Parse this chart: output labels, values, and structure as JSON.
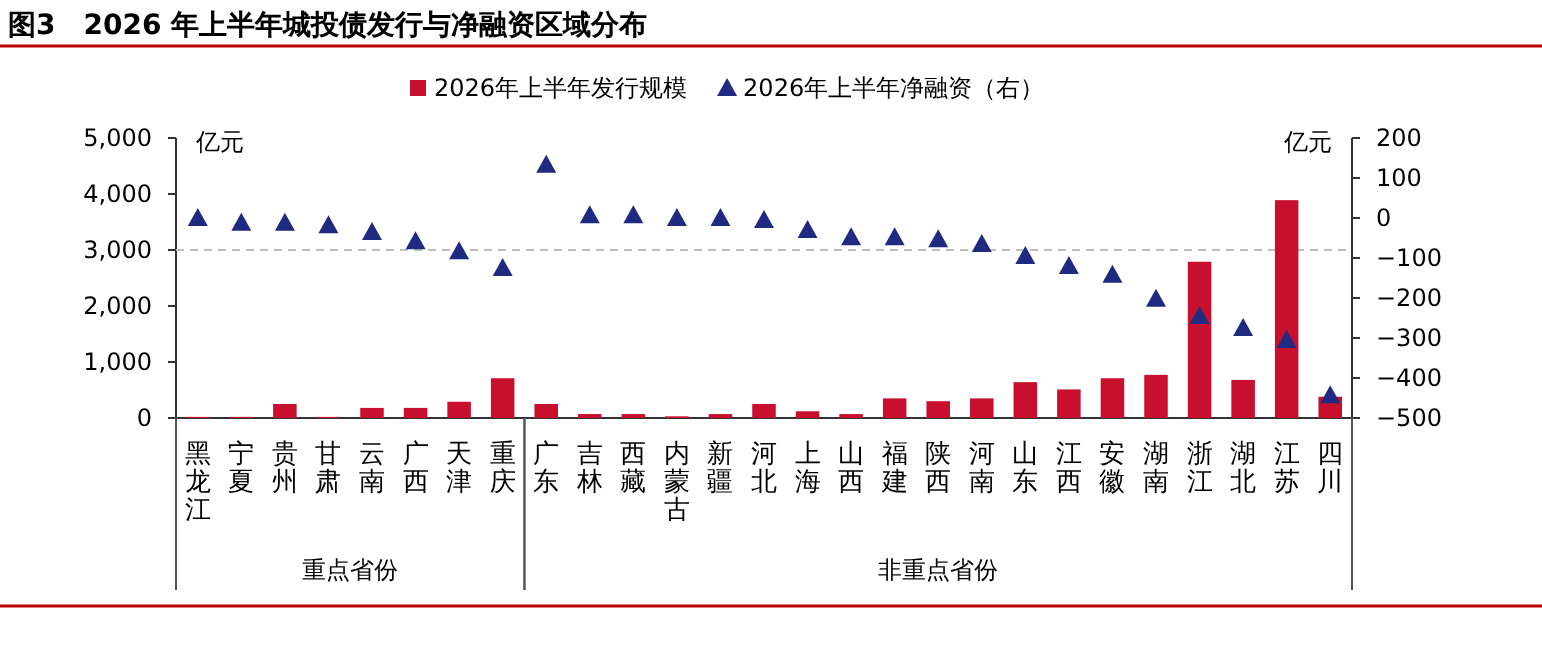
{
  "chart_data": {
    "type": "bar",
    "title": "图3　2026 年上半年城投债发行与净融资区域分布",
    "categories": [
      "黑龙江",
      "宁夏",
      "贵州",
      "甘肃",
      "云南",
      "广西",
      "天津",
      "重庆",
      "广东",
      "吉林",
      "西藏",
      "内蒙古",
      "新疆",
      "河北",
      "上海",
      "山西",
      "福建",
      "陕西",
      "河南",
      "山东",
      "江西",
      "安徽",
      "湖南",
      "浙江",
      "湖北",
      "江苏",
      "四川"
    ],
    "series": [
      {
        "name": "2026年上半年发行规模",
        "color": "#c8102e",
        "values": [
          20,
          20,
          250,
          20,
          180,
          180,
          290,
          710,
          250,
          70,
          70,
          30,
          70,
          250,
          120,
          70,
          350,
          300,
          350,
          640,
          510,
          710,
          770,
          2790,
          680,
          3890,
          380
        ]
      },
      {
        "name": "2026年上半年净融资（右）",
        "type": "scatter",
        "axis": "y2",
        "marker": "triangle",
        "color": "#1f2a80",
        "values": [
          0,
          -12,
          -12,
          -18,
          -35,
          -58,
          -83,
          -125,
          133,
          7,
          7,
          0,
          0,
          -5,
          -30,
          -48,
          -48,
          -53,
          -65,
          -95,
          -120,
          -142,
          -202,
          -245,
          -275,
          -305,
          -443
        ]
      }
    ],
    "ylim": [
      0,
      5000
    ],
    "yticks": [
      0,
      {
        "value": 1000,
        "label": "1,000"
      },
      {
        "value": 2000,
        "label": "2,000"
      },
      {
        "value": 3000,
        "label": "3,000"
      },
      {
        "value": 4000,
        "label": "4,000"
      },
      {
        "value": 5000,
        "label": "5,000"
      }
    ],
    "y2lim": [
      -500,
      200
    ],
    "y2ticks": [
      -500,
      -400,
      -300,
      -200,
      -100,
      0,
      100,
      200
    ],
    "ylabel": "亿元",
    "y2label": "亿元",
    "legend": "top",
    "ref_lines": [
      {
        "axis": "y",
        "value": 3000,
        "color": "#bfbfbf",
        "line_style": "dashed"
      }
    ],
    "annotations": [
      "重点省份",
      "非重点省份"
    ]
  }
}
